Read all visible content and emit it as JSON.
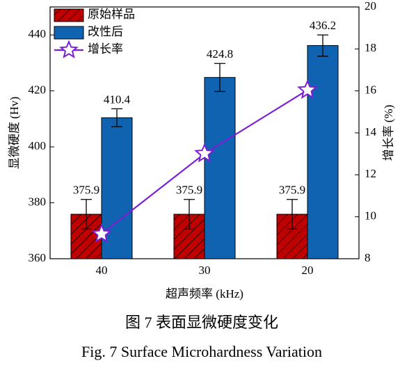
{
  "chart_data": {
    "type": "bar",
    "categories": [
      "40",
      "30",
      "20"
    ],
    "xlabel": "超声频率 (kHz)",
    "ylabel": "显微硬度 (Hv)",
    "y2label": "增长率 (%)",
    "ylim": [
      360,
      450
    ],
    "yticks": [
      360,
      380,
      400,
      420,
      440
    ],
    "y2lim": [
      8,
      20
    ],
    "y2ticks": [
      8,
      10,
      12,
      14,
      16,
      18,
      20
    ],
    "legend": "upper left",
    "series": [
      {
        "name": "原始样品",
        "type": "bar",
        "hatch": true,
        "color": "#c00000",
        "values": [
          375.9,
          375.9,
          375.9
        ],
        "errors": [
          5.3,
          5.3,
          5.3
        ]
      },
      {
        "name": "改性后",
        "type": "bar",
        "color": "#0f63b0",
        "values": [
          410.4,
          424.8,
          436.2
        ],
        "errors": [
          3.2,
          5.0,
          3.8
        ]
      },
      {
        "name": "增长率",
        "type": "line",
        "axis": "y2",
        "color": "#7a1fd6",
        "values": [
          9.18,
          13.01,
          16.04
        ]
      }
    ]
  },
  "caption": {
    "cn": "图 7  表面显微硬度变化",
    "en": "Fig. 7 Surface Microhardness Variation"
  }
}
